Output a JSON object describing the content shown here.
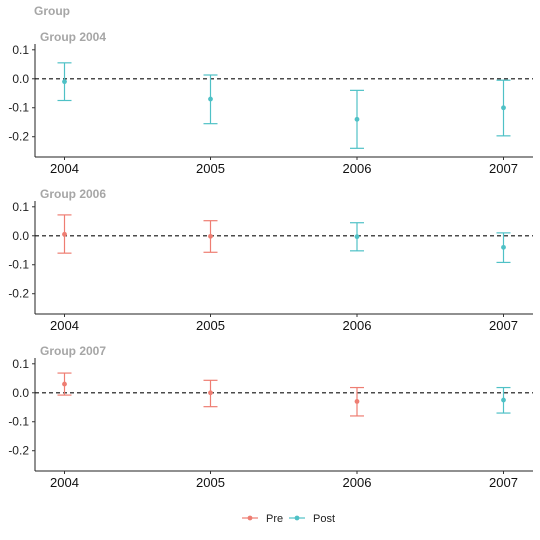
{
  "chart_data": {
    "type": "scatter",
    "title": "Group",
    "legend_position": "bottom",
    "colors": {
      "Pre": "#ee7d72",
      "Post": "#4fc1c6"
    },
    "legend": [
      {
        "name": "Pre",
        "color": "#ee7d72"
      },
      {
        "name": "Post",
        "color": "#4fc1c6"
      }
    ],
    "x_categories": [
      "2004",
      "2005",
      "2006",
      "2007"
    ],
    "y_ticks": [
      "0.1",
      "0.0",
      "-0.1",
      "-0.2"
    ],
    "y_tick_values": [
      0.1,
      0.0,
      -0.1,
      -0.2
    ],
    "ylim": [
      -0.27,
      0.12
    ],
    "reference_line": 0.0,
    "panels": [
      {
        "title": "Group 2004",
        "points": [
          {
            "x": "2004",
            "y": -0.01,
            "lo": -0.075,
            "hi": 0.055,
            "group": "Post"
          },
          {
            "x": "2005",
            "y": -0.07,
            "lo": -0.155,
            "hi": 0.013,
            "group": "Post"
          },
          {
            "x": "2006",
            "y": -0.14,
            "lo": -0.24,
            "hi": -0.04,
            "group": "Post"
          },
          {
            "x": "2007",
            "y": -0.1,
            "lo": -0.197,
            "hi": -0.005,
            "group": "Post"
          }
        ]
      },
      {
        "title": "Group 2006",
        "points": [
          {
            "x": "2004",
            "y": 0.005,
            "lo": -0.06,
            "hi": 0.072,
            "group": "Pre"
          },
          {
            "x": "2005",
            "y": -0.002,
            "lo": -0.057,
            "hi": 0.052,
            "group": "Pre"
          },
          {
            "x": "2006",
            "y": -0.003,
            "lo": -0.052,
            "hi": 0.045,
            "group": "Post"
          },
          {
            "x": "2007",
            "y": -0.04,
            "lo": -0.092,
            "hi": 0.01,
            "group": "Post"
          }
        ]
      },
      {
        "title": "Group 2007",
        "points": [
          {
            "x": "2004",
            "y": 0.03,
            "lo": -0.008,
            "hi": 0.068,
            "group": "Pre"
          },
          {
            "x": "2005",
            "y": 0.0,
            "lo": -0.048,
            "hi": 0.043,
            "group": "Pre"
          },
          {
            "x": "2006",
            "y": -0.03,
            "lo": -0.08,
            "hi": 0.018,
            "group": "Pre"
          },
          {
            "x": "2007",
            "y": -0.025,
            "lo": -0.07,
            "hi": 0.018,
            "group": "Post"
          }
        ]
      }
    ]
  }
}
